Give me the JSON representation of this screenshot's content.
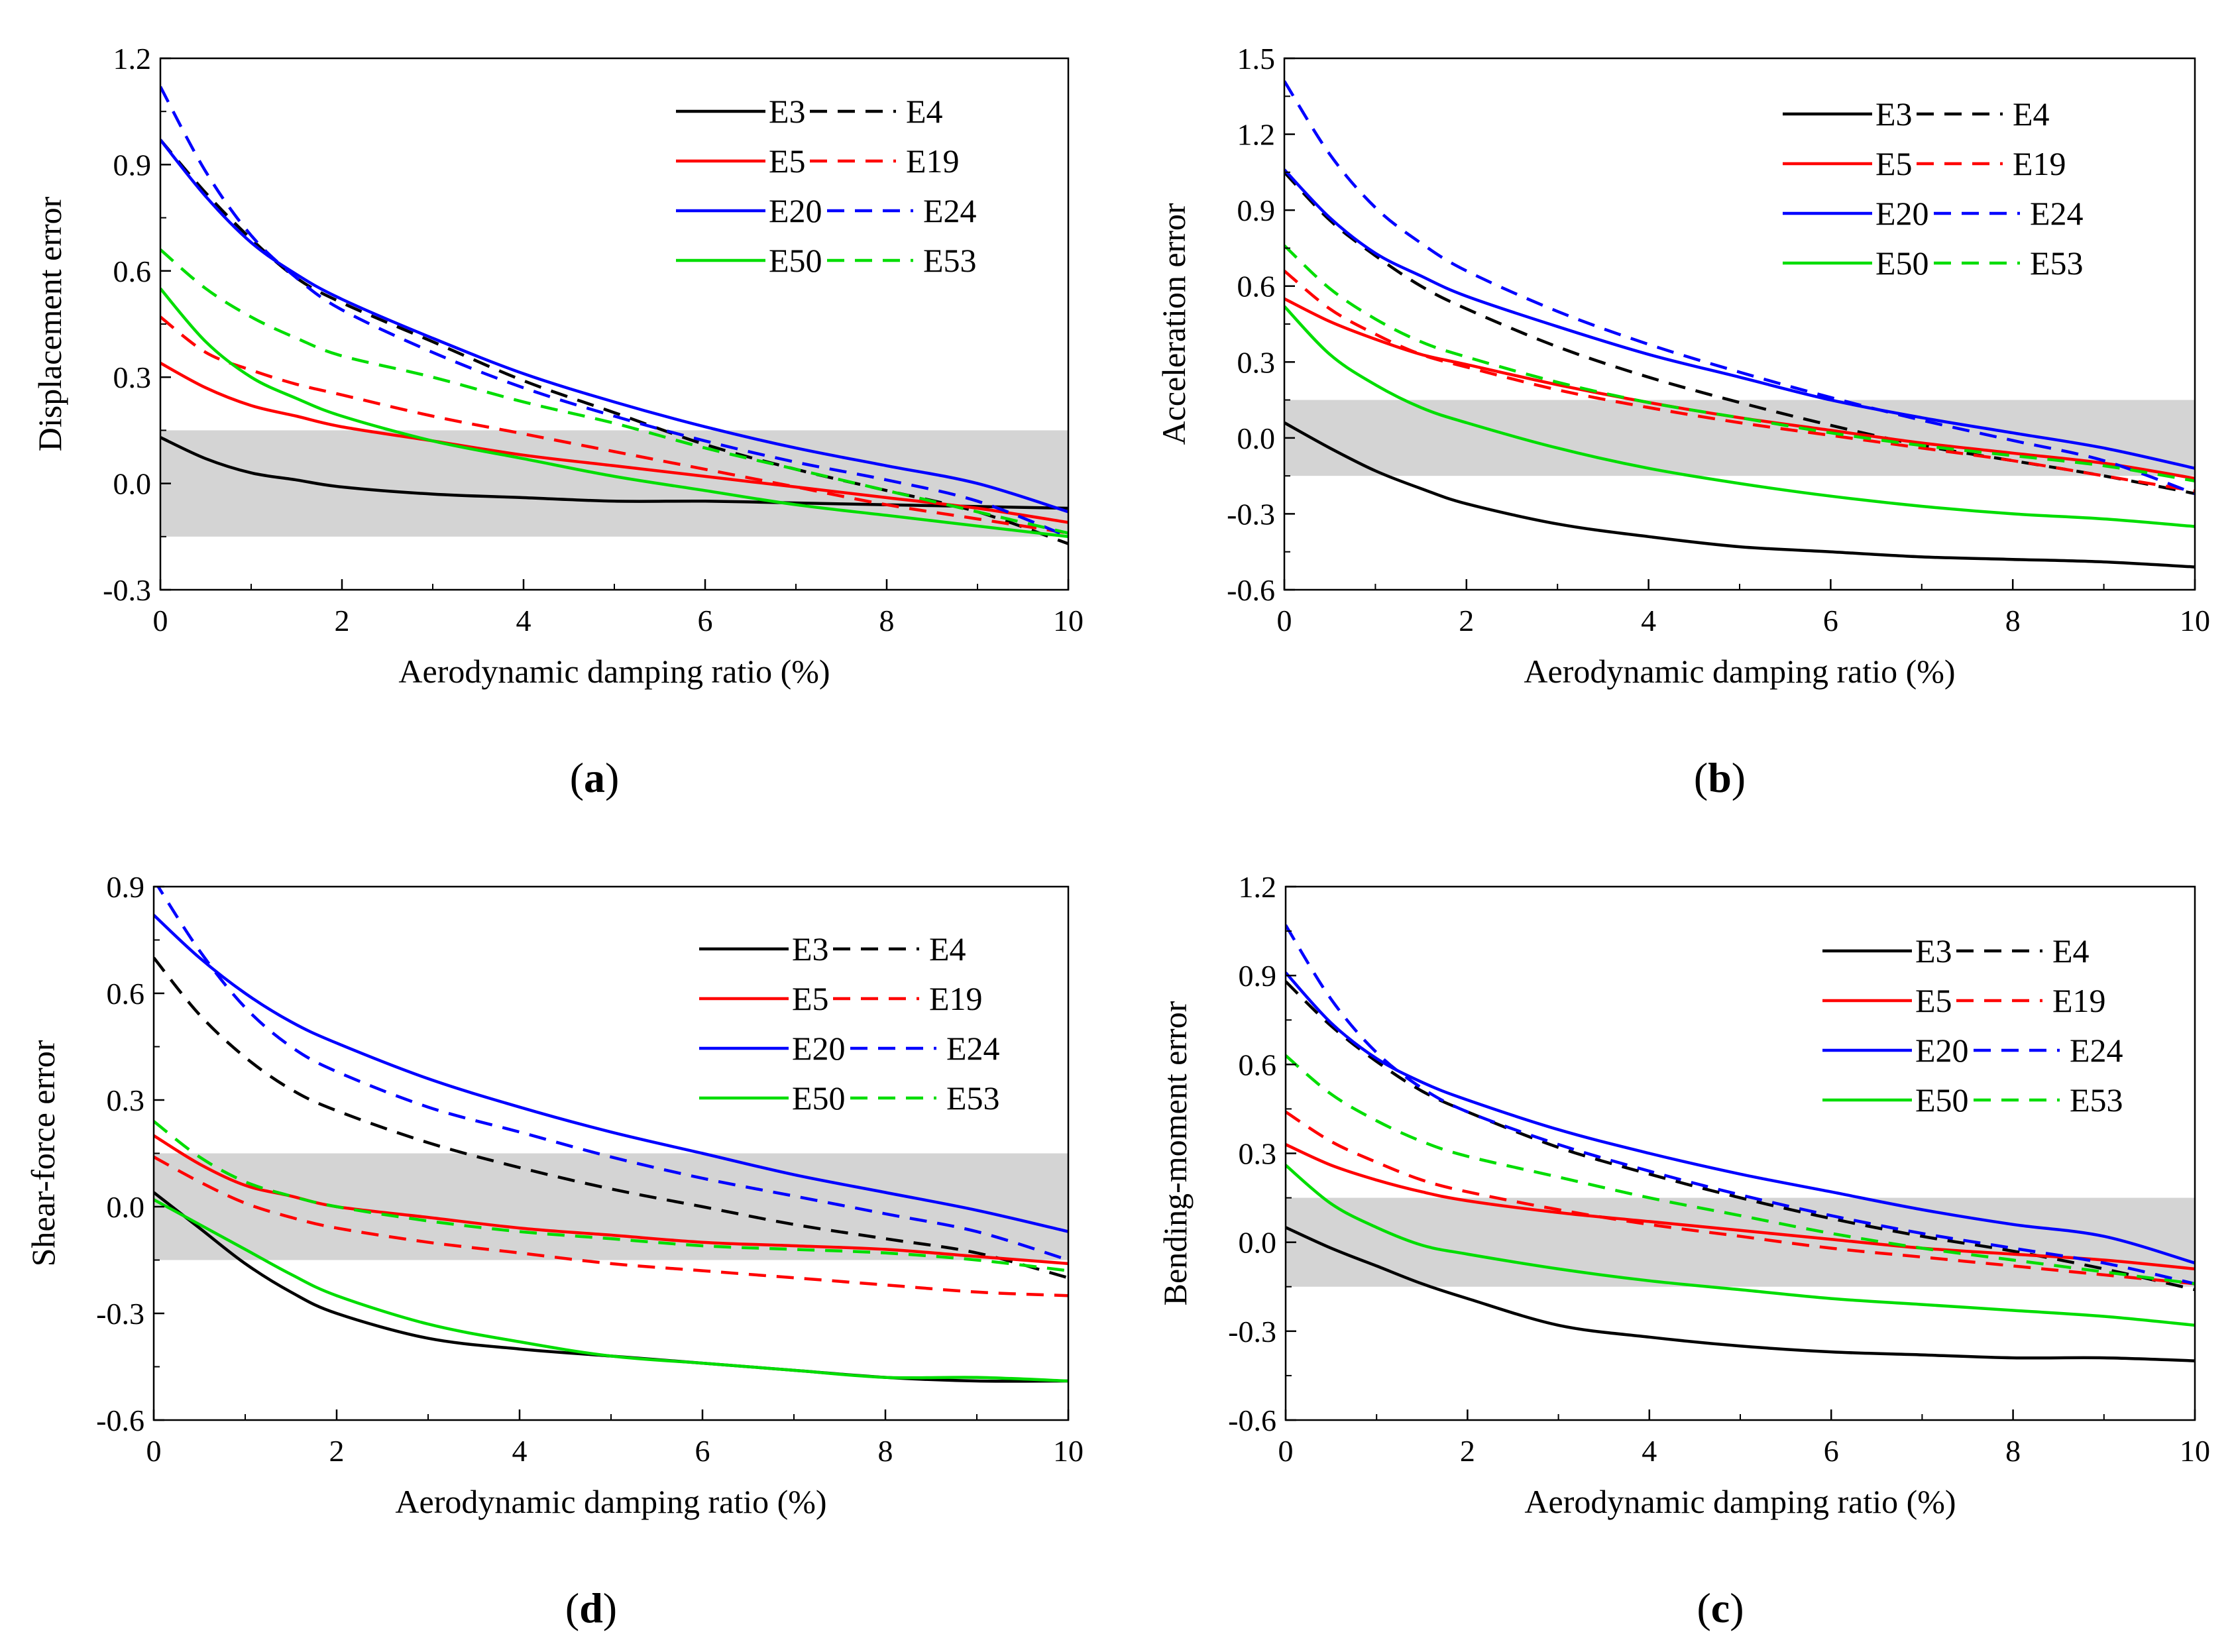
{
  "chart_data": [
    {
      "id": "a",
      "type": "line",
      "panel_label": "a",
      "xlabel": "Aerodynamic damping ratio (%)",
      "ylabel": "Displacement error",
      "xlim": [
        0,
        10
      ],
      "ylim": [
        -0.3,
        1.2
      ],
      "xticks": [
        0,
        2,
        4,
        6,
        8,
        10
      ],
      "yticks": [
        -0.3,
        0.0,
        0.3,
        0.6,
        0.9,
        1.2
      ],
      "ytick_labels": [
        "-0.3",
        "0.0",
        "0.3",
        "0.6",
        "0.9",
        "1.2"
      ],
      "band": [
        -0.15,
        0.15
      ],
      "x": [
        0,
        0.5,
        1,
        1.5,
        2,
        3,
        4,
        5,
        6,
        7,
        8,
        9,
        10
      ],
      "series": [
        {
          "name": "E3",
          "color": "#000000",
          "dash": "solid",
          "values": [
            0.13,
            0.07,
            0.03,
            0.01,
            -0.01,
            -0.03,
            -0.04,
            -0.05,
            -0.05,
            -0.055,
            -0.06,
            -0.065,
            -0.07
          ]
        },
        {
          "name": "E4",
          "color": "#000000",
          "dash": "dashed",
          "values": [
            0.97,
            0.82,
            0.69,
            0.58,
            0.51,
            0.4,
            0.29,
            0.2,
            0.11,
            0.04,
            -0.02,
            -0.08,
            -0.17
          ]
        },
        {
          "name": "E5",
          "color": "#ff0000",
          "dash": "solid",
          "values": [
            0.34,
            0.27,
            0.22,
            0.19,
            0.16,
            0.12,
            0.08,
            0.05,
            0.02,
            -0.01,
            -0.04,
            -0.07,
            -0.11
          ]
        },
        {
          "name": "E19",
          "color": "#ff0000",
          "dash": "dashed",
          "values": [
            0.47,
            0.37,
            0.32,
            0.28,
            0.25,
            0.19,
            0.14,
            0.09,
            0.04,
            -0.01,
            -0.06,
            -0.1,
            -0.14
          ]
        },
        {
          "name": "E20",
          "color": "#0000ff",
          "dash": "solid",
          "values": [
            0.97,
            0.81,
            0.68,
            0.59,
            0.52,
            0.41,
            0.31,
            0.23,
            0.16,
            0.1,
            0.05,
            0.0,
            -0.08
          ]
        },
        {
          "name": "E24",
          "color": "#0000ff",
          "dash": "dashed",
          "values": [
            1.12,
            0.88,
            0.7,
            0.58,
            0.49,
            0.37,
            0.27,
            0.19,
            0.12,
            0.06,
            0.01,
            -0.05,
            -0.15
          ]
        },
        {
          "name": "E50",
          "color": "#00dd00",
          "dash": "solid",
          "values": [
            0.55,
            0.4,
            0.3,
            0.24,
            0.19,
            0.12,
            0.07,
            0.02,
            -0.02,
            -0.06,
            -0.09,
            -0.12,
            -0.15
          ]
        },
        {
          "name": "E53",
          "color": "#00dd00",
          "dash": "dashed",
          "values": [
            0.66,
            0.55,
            0.47,
            0.41,
            0.36,
            0.3,
            0.23,
            0.17,
            0.1,
            0.04,
            -0.02,
            -0.08,
            -0.14
          ]
        }
      ]
    },
    {
      "id": "b",
      "type": "line",
      "panel_label": "b",
      "xlabel": "Aerodynamic damping ratio (%)",
      "ylabel": "Acceleration error",
      "xlim": [
        0,
        10
      ],
      "ylim": [
        -0.6,
        1.5
      ],
      "xticks": [
        0,
        2,
        4,
        6,
        8,
        10
      ],
      "yticks": [
        -0.6,
        -0.3,
        0.0,
        0.3,
        0.6,
        0.9,
        1.2,
        1.5
      ],
      "ytick_labels": [
        "-0.6",
        "-0.3",
        "0.0",
        "0.3",
        "0.6",
        "0.9",
        "1.2",
        "1.5"
      ],
      "band": [
        -0.15,
        0.15
      ],
      "x": [
        0,
        0.5,
        1,
        1.5,
        2,
        3,
        4,
        5,
        6,
        7,
        8,
        9,
        10
      ],
      "series": [
        {
          "name": "E3",
          "color": "#000000",
          "dash": "solid",
          "values": [
            0.06,
            -0.04,
            -0.13,
            -0.2,
            -0.26,
            -0.34,
            -0.39,
            -0.43,
            -0.45,
            -0.47,
            -0.48,
            -0.49,
            -0.51
          ]
        },
        {
          "name": "E4",
          "color": "#000000",
          "dash": "dashed",
          "values": [
            1.05,
            0.86,
            0.72,
            0.6,
            0.51,
            0.36,
            0.24,
            0.14,
            0.05,
            -0.03,
            -0.09,
            -0.15,
            -0.22
          ]
        },
        {
          "name": "E5",
          "color": "#ff0000",
          "dash": "solid",
          "values": [
            0.55,
            0.46,
            0.39,
            0.33,
            0.29,
            0.21,
            0.14,
            0.08,
            0.03,
            -0.02,
            -0.06,
            -0.1,
            -0.16
          ]
        },
        {
          "name": "E19",
          "color": "#ff0000",
          "dash": "dashed",
          "values": [
            0.66,
            0.51,
            0.41,
            0.33,
            0.28,
            0.19,
            0.12,
            0.06,
            0.01,
            -0.04,
            -0.09,
            -0.15,
            -0.21
          ]
        },
        {
          "name": "E20",
          "color": "#0000ff",
          "dash": "solid",
          "values": [
            1.06,
            0.87,
            0.73,
            0.64,
            0.56,
            0.44,
            0.33,
            0.24,
            0.15,
            0.08,
            0.02,
            -0.04,
            -0.12
          ]
        },
        {
          "name": "E24",
          "color": "#0000ff",
          "dash": "dashed",
          "values": [
            1.41,
            1.12,
            0.91,
            0.77,
            0.66,
            0.5,
            0.37,
            0.26,
            0.16,
            0.07,
            -0.01,
            -0.09,
            -0.22
          ]
        },
        {
          "name": "E50",
          "color": "#00dd00",
          "dash": "solid",
          "values": [
            0.52,
            0.33,
            0.21,
            0.12,
            0.06,
            -0.04,
            -0.12,
            -0.18,
            -0.23,
            -0.27,
            -0.3,
            -0.32,
            -0.35
          ]
        },
        {
          "name": "E53",
          "color": "#00dd00",
          "dash": "dashed",
          "values": [
            0.76,
            0.59,
            0.47,
            0.38,
            0.32,
            0.22,
            0.14,
            0.08,
            0.02,
            -0.03,
            -0.07,
            -0.11,
            -0.17
          ]
        }
      ]
    },
    {
      "id": "d",
      "type": "line",
      "panel_label": "d",
      "xlabel": "Aerodynamic damping ratio (%)",
      "ylabel": "Shear-force error",
      "xlim": [
        0,
        10
      ],
      "ylim": [
        -0.6,
        0.9
      ],
      "xticks": [
        0,
        2,
        4,
        6,
        8,
        10
      ],
      "yticks": [
        -0.6,
        -0.3,
        0.0,
        0.3,
        0.6,
        0.9
      ],
      "ytick_labels": [
        "-0.6",
        "-0.3",
        "0.0",
        "0.3",
        "0.6",
        "0.9"
      ],
      "band": [
        -0.15,
        0.15
      ],
      "x": [
        0,
        0.5,
        1,
        1.5,
        2,
        3,
        4,
        5,
        6,
        7,
        8,
        9,
        10
      ],
      "series": [
        {
          "name": "E3",
          "color": "#000000",
          "dash": "solid",
          "values": [
            0.04,
            -0.06,
            -0.16,
            -0.24,
            -0.3,
            -0.37,
            -0.4,
            -0.42,
            -0.44,
            -0.46,
            -0.48,
            -0.49,
            -0.49
          ]
        },
        {
          "name": "E4",
          "color": "#000000",
          "dash": "dashed",
          "values": [
            0.7,
            0.54,
            0.42,
            0.33,
            0.27,
            0.18,
            0.11,
            0.05,
            0.0,
            -0.05,
            -0.09,
            -0.13,
            -0.2
          ]
        },
        {
          "name": "E5",
          "color": "#ff0000",
          "dash": "solid",
          "values": [
            0.2,
            0.12,
            0.06,
            0.03,
            0.0,
            -0.03,
            -0.06,
            -0.08,
            -0.1,
            -0.11,
            -0.12,
            -0.14,
            -0.16
          ]
        },
        {
          "name": "E19",
          "color": "#ff0000",
          "dash": "dashed",
          "values": [
            0.14,
            0.07,
            0.01,
            -0.03,
            -0.06,
            -0.1,
            -0.13,
            -0.16,
            -0.18,
            -0.2,
            -0.22,
            -0.24,
            -0.25
          ]
        },
        {
          "name": "E20",
          "color": "#0000ff",
          "dash": "solid",
          "values": [
            0.82,
            0.7,
            0.6,
            0.52,
            0.46,
            0.36,
            0.28,
            0.21,
            0.15,
            0.09,
            0.04,
            -0.01,
            -0.07
          ]
        },
        {
          "name": "E24",
          "color": "#0000ff",
          "dash": "dashed",
          "values": [
            0.92,
            0.72,
            0.56,
            0.45,
            0.38,
            0.28,
            0.21,
            0.14,
            0.08,
            0.03,
            -0.02,
            -0.07,
            -0.15
          ]
        },
        {
          "name": "E50",
          "color": "#00dd00",
          "dash": "solid",
          "values": [
            0.02,
            -0.05,
            -0.12,
            -0.19,
            -0.25,
            -0.33,
            -0.38,
            -0.42,
            -0.44,
            -0.46,
            -0.48,
            -0.48,
            -0.49
          ]
        },
        {
          "name": "E53",
          "color": "#00dd00",
          "dash": "dashed",
          "values": [
            0.24,
            0.14,
            0.07,
            0.03,
            0.0,
            -0.04,
            -0.07,
            -0.09,
            -0.11,
            -0.12,
            -0.13,
            -0.15,
            -0.18
          ]
        }
      ]
    },
    {
      "id": "c",
      "type": "line",
      "panel_label": "c",
      "xlabel": "Aerodynamic damping ratio (%)",
      "ylabel": "Bending-moment error",
      "xlim": [
        0,
        10
      ],
      "ylim": [
        -0.6,
        1.2
      ],
      "xticks": [
        0,
        2,
        4,
        6,
        8,
        10
      ],
      "yticks": [
        -0.6,
        -0.3,
        0.0,
        0.3,
        0.6,
        0.9,
        1.2
      ],
      "ytick_labels": [
        "-0.6",
        "-0.3",
        "0.0",
        "0.3",
        "0.6",
        "0.9",
        "1.2"
      ],
      "band": [
        -0.15,
        0.15
      ],
      "x": [
        0,
        0.5,
        1,
        1.5,
        2,
        3,
        4,
        5,
        6,
        7,
        8,
        9,
        10
      ],
      "series": [
        {
          "name": "E3",
          "color": "#000000",
          "dash": "solid",
          "values": [
            0.05,
            -0.02,
            -0.08,
            -0.14,
            -0.19,
            -0.28,
            -0.32,
            -0.35,
            -0.37,
            -0.38,
            -0.39,
            -0.39,
            -0.4
          ]
        },
        {
          "name": "E4",
          "color": "#000000",
          "dash": "dashed",
          "values": [
            0.88,
            0.73,
            0.61,
            0.51,
            0.44,
            0.32,
            0.23,
            0.15,
            0.08,
            0.02,
            -0.03,
            -0.09,
            -0.16
          ]
        },
        {
          "name": "E5",
          "color": "#ff0000",
          "dash": "solid",
          "values": [
            0.33,
            0.26,
            0.21,
            0.17,
            0.14,
            0.1,
            0.07,
            0.04,
            0.01,
            -0.02,
            -0.04,
            -0.06,
            -0.09
          ]
        },
        {
          "name": "E19",
          "color": "#ff0000",
          "dash": "dashed",
          "values": [
            0.44,
            0.34,
            0.27,
            0.21,
            0.17,
            0.11,
            0.06,
            0.02,
            -0.02,
            -0.05,
            -0.08,
            -0.11,
            -0.14
          ]
        },
        {
          "name": "E20",
          "color": "#0000ff",
          "dash": "solid",
          "values": [
            0.91,
            0.74,
            0.62,
            0.54,
            0.48,
            0.38,
            0.3,
            0.23,
            0.17,
            0.11,
            0.06,
            0.02,
            -0.07
          ]
        },
        {
          "name": "E24",
          "color": "#0000ff",
          "dash": "dashed",
          "values": [
            1.07,
            0.82,
            0.64,
            0.52,
            0.44,
            0.33,
            0.24,
            0.16,
            0.09,
            0.03,
            -0.02,
            -0.07,
            -0.14
          ]
        },
        {
          "name": "E50",
          "color": "#00dd00",
          "dash": "solid",
          "values": [
            0.26,
            0.13,
            0.05,
            -0.01,
            -0.04,
            -0.09,
            -0.13,
            -0.16,
            -0.19,
            -0.21,
            -0.23,
            -0.25,
            -0.28
          ]
        },
        {
          "name": "E53",
          "color": "#00dd00",
          "dash": "dashed",
          "values": [
            0.63,
            0.5,
            0.41,
            0.34,
            0.29,
            0.22,
            0.15,
            0.09,
            0.03,
            -0.02,
            -0.06,
            -0.1,
            -0.14
          ]
        }
      ]
    }
  ],
  "legend_layout": [
    [
      "E3",
      "E4"
    ],
    [
      "E5",
      "E19"
    ],
    [
      "E20",
      "E24"
    ],
    [
      "E50",
      "E53"
    ]
  ]
}
